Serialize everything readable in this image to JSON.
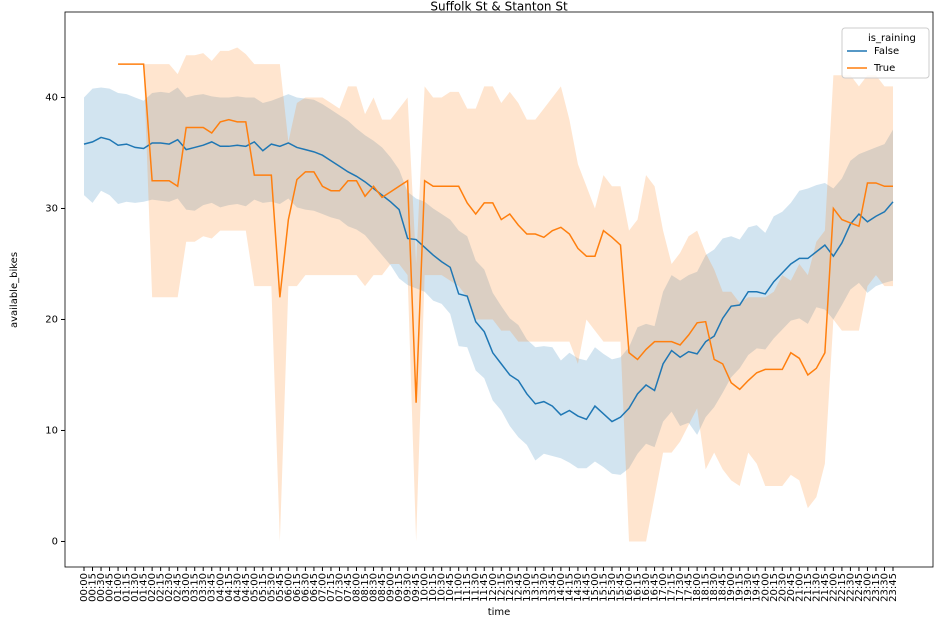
{
  "chart_data": {
    "type": "line",
    "title": "Suffolk St & Stanton St",
    "x_label": "time",
    "y_label": "available_bikes",
    "legend_title": "is_raining",
    "legend_position": "upper right",
    "categories": [
      "00:00",
      "00:15",
      "00:30",
      "00:45",
      "01:00",
      "01:15",
      "01:30",
      "01:45",
      "02:00",
      "02:15",
      "02:30",
      "02:45",
      "03:00",
      "03:15",
      "03:30",
      "03:45",
      "04:00",
      "04:15",
      "04:30",
      "04:45",
      "05:00",
      "05:15",
      "05:30",
      "05:45",
      "06:00",
      "06:15",
      "06:30",
      "06:45",
      "07:00",
      "07:15",
      "07:30",
      "07:45",
      "08:00",
      "08:15",
      "08:30",
      "08:45",
      "09:00",
      "09:15",
      "09:30",
      "09:45",
      "10:00",
      "10:15",
      "10:30",
      "10:45",
      "11:00",
      "11:15",
      "11:30",
      "11:45",
      "12:00",
      "12:15",
      "12:30",
      "12:45",
      "13:00",
      "13:15",
      "13:30",
      "13:45",
      "14:00",
      "14:15",
      "14:30",
      "14:45",
      "15:00",
      "15:15",
      "15:30",
      "15:45",
      "16:00",
      "16:15",
      "16:30",
      "16:45",
      "17:00",
      "17:15",
      "17:30",
      "17:45",
      "18:00",
      "18:15",
      "18:30",
      "18:45",
      "19:00",
      "19:15",
      "19:30",
      "19:45",
      "20:00",
      "20:15",
      "20:30",
      "20:45",
      "21:00",
      "21:15",
      "21:30",
      "21:45",
      "22:00",
      "22:15",
      "22:30",
      "22:45",
      "23:00",
      "23:15",
      "23:30",
      "23:45"
    ],
    "ylim": [
      -2.3,
      47.7
    ],
    "yticks": [
      0,
      10,
      20,
      30,
      40
    ],
    "series": [
      {
        "name": "False",
        "color": "#1f77b4",
        "values": [
          35.8,
          36.0,
          36.4,
          36.2,
          35.7,
          35.8,
          35.5,
          35.4,
          35.9,
          35.9,
          35.8,
          36.2,
          35.3,
          35.5,
          35.7,
          36.0,
          35.6,
          35.6,
          35.7,
          35.6,
          36.0,
          35.2,
          35.8,
          35.6,
          35.9,
          35.5,
          35.3,
          35.1,
          34.8,
          34.3,
          33.8,
          33.3,
          32.9,
          32.4,
          31.8,
          31.2,
          30.6,
          29.9,
          27.3,
          27.2,
          26.5,
          25.8,
          25.2,
          24.7,
          22.3,
          22.1,
          19.8,
          18.9,
          17.0,
          16.0,
          15.0,
          14.5,
          13.3,
          12.4,
          12.6,
          12.2,
          11.4,
          11.8,
          11.3,
          11.0,
          12.2,
          11.5,
          10.8,
          11.2,
          12.0,
          13.3,
          14.1,
          13.6,
          16.0,
          17.2,
          16.6,
          17.1,
          16.9,
          18.0,
          18.5,
          20.1,
          21.2,
          21.3,
          22.5,
          22.5,
          22.3,
          23.4,
          24.2,
          25.0,
          25.5,
          25.5,
          26.1,
          26.7,
          25.7,
          26.9,
          28.6,
          29.5,
          28.8,
          29.3,
          29.7,
          30.6
        ],
        "ci_upper": [
          40.0,
          40.8,
          40.9,
          40.8,
          40.4,
          40.3,
          40.0,
          39.7,
          40.4,
          40.5,
          40.4,
          40.9,
          40.0,
          40.2,
          40.3,
          40.1,
          40.0,
          40.0,
          40.1,
          40.0,
          40.0,
          39.5,
          39.7,
          40.0,
          40.3,
          40.0,
          39.9,
          39.8,
          39.4,
          38.9,
          38.4,
          37.9,
          37.2,
          36.6,
          36.1,
          35.5,
          34.6,
          33.5,
          31.5,
          30.9,
          30.6,
          30.0,
          29.5,
          29.0,
          28.0,
          27.5,
          25.3,
          24.5,
          22.4,
          21.2,
          20.1,
          19.5,
          18.2,
          17.5,
          17.6,
          17.5,
          16.3,
          17.0,
          16.5,
          16.3,
          17.5,
          16.9,
          16.4,
          16.6,
          17.5,
          19.3,
          19.6,
          19.4,
          22.5,
          24.0,
          23.5,
          24.0,
          24.3,
          25.8,
          26.3,
          27.3,
          27.5,
          27.2,
          28.3,
          28.5,
          27.8,
          29.3,
          29.7,
          30.5,
          31.6,
          31.8,
          32.1,
          32.3,
          31.8,
          32.7,
          34.3,
          34.9,
          35.2,
          35.5,
          35.8,
          37.1
        ],
        "ci_lower": [
          31.2,
          30.5,
          31.6,
          31.2,
          30.4,
          30.6,
          30.5,
          30.6,
          30.8,
          30.7,
          30.6,
          30.9,
          29.9,
          29.8,
          30.3,
          30.5,
          30.1,
          30.3,
          30.4,
          30.2,
          30.8,
          30.5,
          30.6,
          30.4,
          30.9,
          30.1,
          29.9,
          29.8,
          29.5,
          29.2,
          29.0,
          28.4,
          28.1,
          27.6,
          26.7,
          25.8,
          24.9,
          23.7,
          23.1,
          22.8,
          22.5,
          21.7,
          21.4,
          20.5,
          17.6,
          17.5,
          15.4,
          14.7,
          12.7,
          11.8,
          10.4,
          9.4,
          8.7,
          7.3,
          7.9,
          7.7,
          7.5,
          7.1,
          6.6,
          6.6,
          7.2,
          6.7,
          6.1,
          6.0,
          6.6,
          7.9,
          8.8,
          8.5,
          10.8,
          11.7,
          10.4,
          10.7,
          9.6,
          11.2,
          12.1,
          13.4,
          14.8,
          15.6,
          16.8,
          17.4,
          17.3,
          18.3,
          19.1,
          19.9,
          20.1,
          19.6,
          21.1,
          20.9,
          20.0,
          21.3,
          22.7,
          23.3,
          22.4,
          23.0,
          23.3,
          23.5
        ]
      },
      {
        "name": "True",
        "color": "#ff7f0e",
        "values": [
          null,
          null,
          null,
          null,
          43.0,
          43.0,
          43.0,
          43.0,
          32.5,
          32.5,
          32.5,
          32.0,
          37.3,
          37.3,
          37.3,
          36.8,
          37.8,
          38.0,
          37.8,
          37.8,
          33.0,
          33.0,
          33.0,
          22.0,
          29.0,
          32.6,
          33.3,
          33.3,
          32.0,
          31.6,
          31.6,
          32.5,
          32.5,
          31.1,
          32.0,
          31.0,
          31.5,
          32.0,
          32.5,
          12.5,
          32.5,
          32.0,
          32.0,
          32.0,
          32.0,
          30.5,
          29.5,
          30.5,
          30.5,
          29.0,
          29.5,
          28.5,
          27.7,
          27.7,
          27.4,
          28.0,
          28.3,
          27.7,
          26.4,
          25.7,
          25.7,
          28.0,
          27.4,
          26.7,
          17.0,
          16.4,
          17.3,
          18.0,
          18.0,
          18.0,
          17.7,
          18.6,
          19.7,
          19.8,
          16.4,
          16.0,
          14.3,
          13.7,
          14.5,
          15.2,
          15.5,
          15.5,
          15.5,
          17.0,
          16.5,
          15.0,
          15.6,
          17.0,
          30.0,
          29.0,
          28.7,
          28.4,
          32.3,
          32.3,
          32.0,
          32.0
        ],
        "ci_upper": [
          null,
          null,
          null,
          null,
          43.0,
          43.0,
          43.0,
          43.0,
          43.0,
          43.0,
          43.0,
          42.1,
          43.8,
          43.8,
          44.0,
          43.3,
          44.2,
          44.2,
          44.5,
          43.9,
          43.0,
          43.0,
          43.0,
          43.0,
          36.0,
          39.5,
          40.0,
          40.0,
          40.0,
          39.5,
          39.0,
          41.0,
          41.0,
          38.5,
          40.0,
          38.0,
          38.0,
          39.0,
          40.0,
          25.0,
          41.0,
          40.0,
          40.0,
          40.5,
          40.5,
          39.0,
          39.0,
          41.0,
          41.0,
          39.5,
          40.5,
          39.5,
          38.0,
          38.0,
          39.0,
          40.0,
          41.0,
          38.0,
          34.0,
          32.0,
          30.0,
          33.0,
          32.0,
          32.0,
          28.0,
          29.0,
          33.0,
          32.0,
          28.0,
          25.0,
          26.0,
          27.5,
          28.0,
          26.0,
          24.5,
          22.5,
          22.5,
          21.5,
          22.0,
          22.0,
          22.0,
          22.5,
          24.0,
          23.5,
          25.0,
          24.0,
          27.0,
          28.0,
          42.0,
          42.0,
          42.0,
          41.0,
          42.0,
          42.0,
          41.0,
          41.0
        ],
        "ci_lower": [
          null,
          null,
          null,
          null,
          43.0,
          43.0,
          43.0,
          43.0,
          22.0,
          22.0,
          22.0,
          22.0,
          27.0,
          27.0,
          27.5,
          27.3,
          28.0,
          28.0,
          28.0,
          28.0,
          23.0,
          23.0,
          23.0,
          0,
          23.0,
          23.0,
          24.0,
          24.0,
          24.0,
          24.0,
          24.0,
          24.0,
          24.0,
          23.0,
          24.0,
          24.0,
          25.0,
          25.0,
          24.0,
          0,
          24.0,
          24.0,
          24.0,
          23.5,
          23.0,
          22.0,
          20.0,
          20.0,
          20.0,
          19.0,
          19.0,
          18.0,
          18.0,
          18.0,
          18.0,
          18.0,
          18.0,
          18.0,
          16.0,
          20.0,
          19.0,
          18.0,
          18.0,
          18.0,
          0,
          0,
          0,
          4.0,
          8.0,
          8.0,
          9.0,
          10.5,
          12.0,
          6.5,
          8.0,
          6.5,
          5.5,
          5.0,
          8.0,
          7.0,
          5.0,
          5.0,
          5.0,
          6.0,
          5.5,
          3.0,
          4.0,
          7.0,
          20.0,
          19.0,
          19.0,
          19.0,
          23.0,
          24.0,
          23.0,
          23.0
        ]
      }
    ]
  }
}
